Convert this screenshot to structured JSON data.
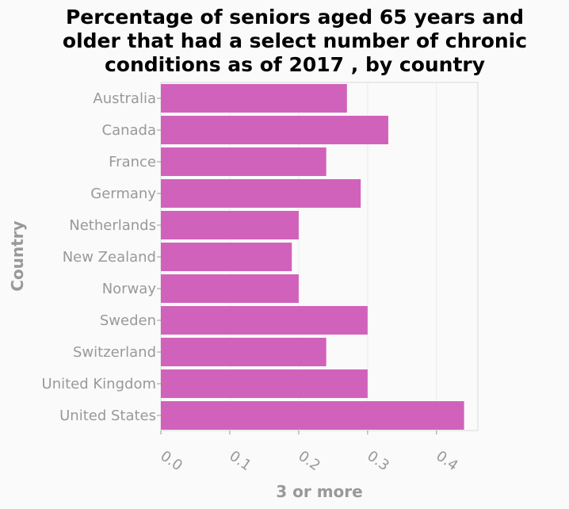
{
  "chart_data": {
    "type": "bar",
    "orientation": "horizontal",
    "title": "Percentage of seniors aged 65 years and older that had a select number of chronic conditions as of 2017 , by country",
    "title_lines": [
      "Percentage of seniors aged 65 years and",
      "older that had a select number of chronic",
      "conditions as of 2017 , by country"
    ],
    "xlabel": "3 or more",
    "ylabel": "Country",
    "xlim": [
      0,
      0.46
    ],
    "xticks": [
      "0.0",
      "0.1",
      "0.2",
      "0.3",
      "0.4"
    ],
    "categories": [
      "Australia",
      "Canada",
      "France",
      "Germany",
      "Netherlands",
      "New Zealand",
      "Norway",
      "Sweden",
      "Switzerland",
      "United Kingdom",
      "United States"
    ],
    "values": [
      0.27,
      0.33,
      0.24,
      0.29,
      0.2,
      0.19,
      0.2,
      0.3,
      0.24,
      0.3,
      0.44
    ],
    "bar_color": "#d162bb",
    "grid": true
  }
}
